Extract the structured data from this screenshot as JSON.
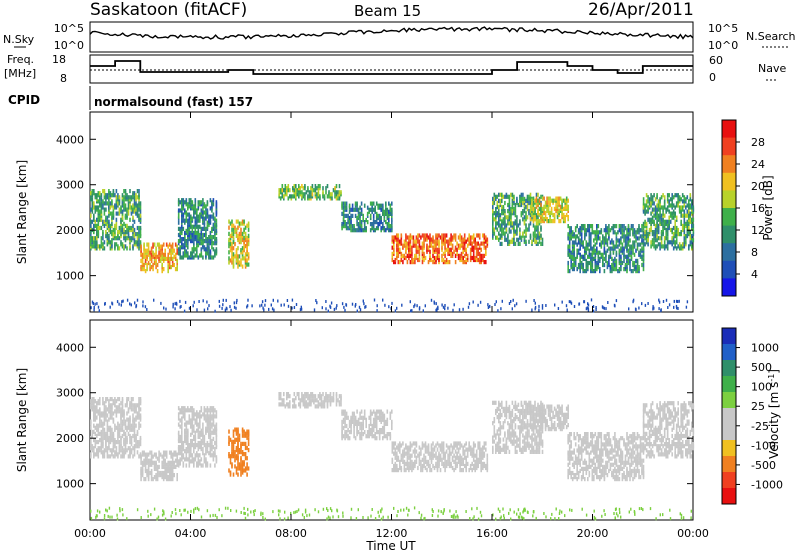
{
  "header": {
    "station": "Saskatoon (fitACF)",
    "beam": "Beam 15",
    "date": "26/Apr/2011"
  },
  "noise_panel": {
    "left_label": "N.Sky",
    "left_ticks": [
      "10^5",
      "10^0"
    ],
    "right_ticks": [
      "10^5",
      "10^0"
    ],
    "right_label": "N.Search"
  },
  "freq_panel": {
    "left_label_1": "Freq.",
    "left_label_2": "[MHz]",
    "left_ticks": [
      "18",
      "8"
    ],
    "right_ticks": [
      "60",
      "0"
    ],
    "right_label": "Nave"
  },
  "cpid": {
    "label": "CPID",
    "text": "normalsound (fast) 157"
  },
  "colors": {
    "power": [
      "#1616e8",
      "#1f4fb8",
      "#2c6fa0",
      "#2f8f6a",
      "#3fb04a",
      "#b8d22a",
      "#f0c020",
      "#f08020",
      "#f04020",
      "#e81010"
    ],
    "velocity": [
      "#1a2db8",
      "#2060c8",
      "#2f8f6a",
      "#3fb04a",
      "#7cd040",
      "#c8c8c8",
      "#c8c8c8",
      "#f0c020",
      "#f08020",
      "#f04020",
      "#e81010"
    ],
    "ground": "#a8a8a8"
  },
  "chart_data": [
    {
      "type": "heatmap",
      "title": "Power",
      "xlabel": "Time UT",
      "ylabel": "Slant Range [km]",
      "xticks": [
        "00:00",
        "04:00",
        "08:00",
        "12:00",
        "16:00",
        "20:00",
        "00:00"
      ],
      "xlim": [
        0,
        24
      ],
      "yticks": [
        "1000",
        "2000",
        "3000",
        "4000"
      ],
      "ylim": [
        200,
        4600
      ],
      "colorbar_label": "Power [dB]",
      "colorbar_ticks": [
        "4",
        "8",
        "12",
        "16",
        "20",
        "24",
        "28"
      ],
      "colorbar_range": [
        0,
        30
      ],
      "echo_bands": [
        {
          "t0": 0.0,
          "t1": 2.0,
          "r0": 1600,
          "r1": 2900,
          "v": 12
        },
        {
          "t0": 2.0,
          "t1": 3.5,
          "r0": 1100,
          "r1": 1700,
          "v": 20
        },
        {
          "t0": 3.5,
          "t1": 5.0,
          "r0": 1400,
          "r1": 2700,
          "v": 10
        },
        {
          "t0": 5.5,
          "t1": 6.3,
          "r0": 1200,
          "r1": 2200,
          "v": 18
        },
        {
          "t0": 7.5,
          "t1": 10.0,
          "r0": 2700,
          "r1": 3000,
          "v": 14
        },
        {
          "t0": 10.0,
          "t1": 12.0,
          "r0": 2000,
          "r1": 2600,
          "v": 10
        },
        {
          "t0": 12.0,
          "t1": 15.8,
          "r0": 1300,
          "r1": 1900,
          "v": 24
        },
        {
          "t0": 16.0,
          "t1": 18.0,
          "r0": 1700,
          "r1": 2800,
          "v": 12
        },
        {
          "t0": 17.5,
          "t1": 19.0,
          "r0": 2200,
          "r1": 2700,
          "v": 18
        },
        {
          "t0": 19.0,
          "t1": 22.0,
          "r0": 1100,
          "r1": 2100,
          "v": 10
        },
        {
          "t0": 22.0,
          "t1": 24.0,
          "r0": 1600,
          "r1": 2800,
          "v": 12
        }
      ]
    },
    {
      "type": "heatmap",
      "title": "Velocity",
      "xlabel": "Time UT",
      "ylabel": "Slant Range [km]",
      "xticks": [
        "00:00",
        "04:00",
        "08:00",
        "12:00",
        "16:00",
        "20:00",
        "00:00"
      ],
      "xlim": [
        0,
        24
      ],
      "yticks": [
        "1000",
        "2000",
        "3000",
        "4000"
      ],
      "ylim": [
        200,
        4600
      ],
      "colorbar_label": "Velocity [m s^-1]",
      "colorbar_ticks": [
        "1000",
        "500",
        "100",
        "25",
        "-25",
        "-100",
        "-500",
        "-1000"
      ],
      "echo_bands": [
        {
          "t0": 0.0,
          "t1": 2.0,
          "r0": 1600,
          "r1": 2900,
          "v": 0
        },
        {
          "t0": 2.0,
          "t1": 3.5,
          "r0": 1100,
          "r1": 1700,
          "v": 0
        },
        {
          "t0": 3.5,
          "t1": 5.0,
          "r0": 1400,
          "r1": 2700,
          "v": 0
        },
        {
          "t0": 5.5,
          "t1": 6.3,
          "r0": 1200,
          "r1": 2200,
          "v": -300
        },
        {
          "t0": 7.5,
          "t1": 10.0,
          "r0": 2700,
          "r1": 3000,
          "v": 0
        },
        {
          "t0": 10.0,
          "t1": 12.0,
          "r0": 2000,
          "r1": 2600,
          "v": 0
        },
        {
          "t0": 12.0,
          "t1": 15.8,
          "r0": 1300,
          "r1": 1900,
          "v": 0
        },
        {
          "t0": 16.0,
          "t1": 18.0,
          "r0": 1700,
          "r1": 2800,
          "v": 0
        },
        {
          "t0": 17.5,
          "t1": 19.0,
          "r0": 2200,
          "r1": 2700,
          "v": 0
        },
        {
          "t0": 19.0,
          "t1": 22.0,
          "r0": 1100,
          "r1": 2100,
          "v": 0
        },
        {
          "t0": 22.0,
          "t1": 24.0,
          "r0": 1600,
          "r1": 2800,
          "v": 0
        }
      ]
    }
  ]
}
